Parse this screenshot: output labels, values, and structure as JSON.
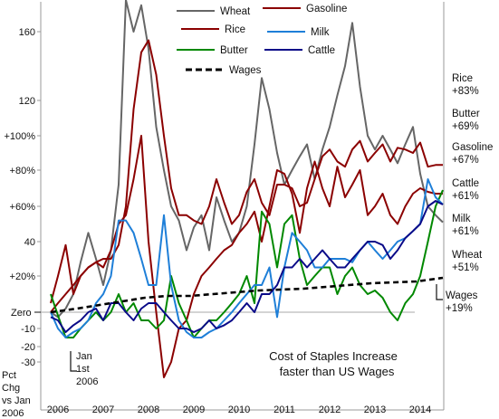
{
  "chart_data": {
    "type": "line",
    "title": "",
    "xlabel": "",
    "ylabel": "",
    "xlim": [
      2005.83,
      2014.6
    ],
    "ylim": [
      -30,
      180
    ],
    "grid": false,
    "legend_position": "top",
    "x_ticks": [
      {
        "value": 2006,
        "label": "2006"
      },
      {
        "value": 2007,
        "label": "2007"
      },
      {
        "value": 2008,
        "label": "2008"
      },
      {
        "value": 2009,
        "label": "2009"
      },
      {
        "value": 2010,
        "label": "2010"
      },
      {
        "value": 2011,
        "label": "2011"
      },
      {
        "value": 2012,
        "label": "2012"
      },
      {
        "value": 2013,
        "label": "2013"
      },
      {
        "value": 2014,
        "label": "2014"
      }
    ],
    "y_ticks": [
      {
        "value": 160,
        "label": "160"
      },
      {
        "value": 120,
        "label": "120"
      },
      {
        "value": 100,
        "label": "+100%"
      },
      {
        "value": 80,
        "label": "+80%"
      },
      {
        "value": 60,
        "label": "+60%"
      },
      {
        "value": 40,
        "label": "40"
      },
      {
        "value": 20,
        "label": "+20%"
      },
      {
        "value": 0,
        "label": "Zero"
      },
      {
        "value": -10,
        "label": "-10"
      },
      {
        "value": -20,
        "label": "-20"
      },
      {
        "value": -30,
        "label": "-30"
      }
    ],
    "x_caption": [
      "Pct",
      "Chg",
      "vs Jan",
      "2006"
    ],
    "jan_marker": {
      "x": 2006.3,
      "label_lines": [
        "Jan",
        "1st",
        "2006"
      ]
    },
    "annotation_lines": [
      "Cost of Staples Increase",
      "faster than US Wages"
    ],
    "series": [
      {
        "name": "Wheat",
        "color": "#666666",
        "dash": false,
        "label_lines": [
          "Wheat",
          "+51%"
        ],
        "x": [
          2005.92,
          2006.08,
          2006.25,
          2006.42,
          2006.58,
          2006.75,
          2006.92,
          2007.08,
          2007.25,
          2007.42,
          2007.58,
          2007.75,
          2007.92,
          2008.08,
          2008.25,
          2008.42,
          2008.58,
          2008.75,
          2008.92,
          2009.08,
          2009.25,
          2009.42,
          2009.58,
          2009.75,
          2009.92,
          2010.08,
          2010.25,
          2010.42,
          2010.58,
          2010.75,
          2010.92,
          2011.08,
          2011.25,
          2011.42,
          2011.58,
          2011.75,
          2011.92,
          2012.08,
          2012.25,
          2012.42,
          2012.58,
          2012.75,
          2012.92,
          2013.08,
          2013.25,
          2013.42,
          2013.58,
          2013.75,
          2013.92,
          2014.08,
          2014.25,
          2014.42,
          2014.58
        ],
        "values": [
          0,
          -3,
          2,
          10,
          28,
          45,
          30,
          15,
          35,
          72,
          178,
          160,
          175,
          150,
          105,
          80,
          60,
          52,
          35,
          48,
          55,
          35,
          65,
          52,
          40,
          45,
          60,
          95,
          133,
          115,
          90,
          72,
          80,
          88,
          95,
          75,
          92,
          105,
          123,
          140,
          165,
          128,
          100,
          92,
          100,
          92,
          84,
          95,
          105,
          78,
          60,
          55,
          51
        ]
      },
      {
        "name": "Gasoline",
        "color": "#8b0000",
        "dash": false,
        "label_lines": [
          "Gasoline",
          "+67%"
        ],
        "x": [
          2005.92,
          2006.08,
          2006.25,
          2006.42,
          2006.58,
          2006.75,
          2006.92,
          2007.08,
          2007.25,
          2007.42,
          2007.58,
          2007.75,
          2007.92,
          2008.08,
          2008.25,
          2008.42,
          2008.58,
          2008.75,
          2008.92,
          2009.08,
          2009.25,
          2009.42,
          2009.58,
          2009.75,
          2009.92,
          2010.08,
          2010.25,
          2010.42,
          2010.58,
          2010.75,
          2010.92,
          2011.08,
          2011.25,
          2011.42,
          2011.58,
          2011.75,
          2011.92,
          2012.08,
          2012.25,
          2012.42,
          2012.58,
          2012.75,
          2012.92,
          2013.08,
          2013.25,
          2013.42,
          2013.58,
          2013.75,
          2013.92,
          2014.08,
          2014.25,
          2014.42,
          2014.58
        ],
        "values": [
          5,
          20,
          38,
          10,
          20,
          25,
          28,
          25,
          35,
          50,
          55,
          75,
          100,
          40,
          0,
          -40,
          -30,
          -10,
          -5,
          10,
          20,
          25,
          30,
          35,
          38,
          45,
          50,
          57,
          40,
          60,
          80,
          78,
          67,
          45,
          70,
          85,
          70,
          60,
          82,
          65,
          72,
          80,
          55,
          60,
          67,
          55,
          50,
          60,
          67,
          70,
          68,
          67,
          67
        ]
      },
      {
        "name": "Rice",
        "color": "#8b0000",
        "dash": false,
        "label_lines": [
          "Rice",
          "+83%"
        ],
        "x": [
          2005.92,
          2006.08,
          2006.25,
          2006.42,
          2006.58,
          2006.75,
          2006.92,
          2007.08,
          2007.25,
          2007.42,
          2007.58,
          2007.75,
          2007.92,
          2008.08,
          2008.25,
          2008.42,
          2008.58,
          2008.75,
          2008.92,
          2009.08,
          2009.25,
          2009.42,
          2009.58,
          2009.75,
          2009.92,
          2010.08,
          2010.25,
          2010.42,
          2010.58,
          2010.75,
          2010.92,
          2011.08,
          2011.25,
          2011.42,
          2011.58,
          2011.75,
          2011.92,
          2012.08,
          2012.25,
          2012.42,
          2012.58,
          2012.75,
          2012.92,
          2013.08,
          2013.25,
          2013.42,
          2013.58,
          2013.75,
          2013.92,
          2014.08,
          2014.25,
          2014.42,
          2014.58
        ],
        "values": [
          0,
          5,
          10,
          15,
          20,
          25,
          28,
          30,
          30,
          38,
          60,
          115,
          148,
          155,
          135,
          100,
          70,
          55,
          55,
          52,
          50,
          60,
          75,
          62,
          50,
          55,
          68,
          75,
          62,
          55,
          72,
          72,
          70,
          60,
          62,
          75,
          88,
          92,
          85,
          82,
          92,
          97,
          85,
          90,
          95,
          85,
          93,
          92,
          90,
          96,
          82,
          83,
          83
        ]
      },
      {
        "name": "Butter",
        "color": "#008800",
        "dash": false,
        "label_lines": [
          "Butter",
          "+69%"
        ],
        "x": [
          2005.92,
          2006.08,
          2006.25,
          2006.42,
          2006.58,
          2006.75,
          2006.92,
          2007.08,
          2007.25,
          2007.42,
          2007.58,
          2007.75,
          2007.92,
          2008.08,
          2008.25,
          2008.42,
          2008.58,
          2008.75,
          2008.92,
          2009.08,
          2009.25,
          2009.42,
          2009.58,
          2009.75,
          2009.92,
          2010.08,
          2010.25,
          2010.42,
          2010.58,
          2010.75,
          2010.92,
          2011.08,
          2011.25,
          2011.42,
          2011.58,
          2011.75,
          2011.92,
          2012.08,
          2012.25,
          2012.42,
          2012.58,
          2012.75,
          2012.92,
          2013.08,
          2013.25,
          2013.42,
          2013.58,
          2013.75,
          2013.92,
          2014.08,
          2014.25,
          2014.42,
          2014.58
        ],
        "values": [
          10,
          -2,
          -15,
          -15,
          -10,
          -5,
          0,
          -5,
          0,
          10,
          0,
          5,
          -5,
          -5,
          -10,
          -5,
          20,
          5,
          -5,
          -15,
          -10,
          -5,
          -5,
          0,
          5,
          10,
          20,
          5,
          57,
          50,
          25,
          50,
          55,
          30,
          15,
          20,
          25,
          25,
          10,
          20,
          25,
          15,
          10,
          12,
          8,
          0,
          -5,
          5,
          10,
          20,
          40,
          60,
          69
        ]
      },
      {
        "name": "Milk",
        "color": "#1e7fd8",
        "dash": false,
        "label_lines": [
          "Milk",
          "+61%"
        ],
        "x": [
          2005.92,
          2006.08,
          2006.25,
          2006.42,
          2006.58,
          2006.75,
          2006.92,
          2007.08,
          2007.25,
          2007.42,
          2007.58,
          2007.75,
          2007.92,
          2008.08,
          2008.25,
          2008.42,
          2008.58,
          2008.75,
          2008.92,
          2009.08,
          2009.25,
          2009.42,
          2009.58,
          2009.75,
          2009.92,
          2010.08,
          2010.25,
          2010.42,
          2010.58,
          2010.75,
          2010.92,
          2011.08,
          2011.25,
          2011.42,
          2011.58,
          2011.75,
          2011.92,
          2012.08,
          2012.25,
          2012.42,
          2012.58,
          2012.75,
          2012.92,
          2013.08,
          2013.25,
          2013.42,
          2013.58,
          2013.75,
          2013.92,
          2014.08,
          2014.25,
          2014.42,
          2014.58
        ],
        "values": [
          0,
          -10,
          -15,
          -12,
          -10,
          -5,
          5,
          10,
          20,
          52,
          52,
          45,
          30,
          15,
          15,
          55,
          15,
          -5,
          -12,
          -15,
          -15,
          -12,
          -10,
          -5,
          0,
          5,
          10,
          15,
          15,
          25,
          -3,
          25,
          45,
          40,
          35,
          25,
          25,
          30,
          30,
          30,
          28,
          35,
          40,
          35,
          30,
          35,
          40,
          42,
          46,
          50,
          75,
          65,
          61
        ]
      },
      {
        "name": "Cattle",
        "color": "#0a0a88",
        "dash": false,
        "label_lines": [
          "Cattle",
          "+61%"
        ],
        "x": [
          2005.92,
          2006.08,
          2006.25,
          2006.42,
          2006.58,
          2006.75,
          2006.92,
          2007.08,
          2007.25,
          2007.42,
          2007.58,
          2007.75,
          2007.92,
          2008.08,
          2008.25,
          2008.42,
          2008.58,
          2008.75,
          2008.92,
          2009.08,
          2009.25,
          2009.42,
          2009.58,
          2009.75,
          2009.92,
          2010.08,
          2010.25,
          2010.42,
          2010.58,
          2010.75,
          2010.92,
          2011.08,
          2011.25,
          2011.42,
          2011.58,
          2011.75,
          2011.92,
          2012.08,
          2012.25,
          2012.42,
          2012.58,
          2012.75,
          2012.92,
          2013.08,
          2013.25,
          2013.42,
          2013.58,
          2013.75,
          2013.92,
          2014.08,
          2014.25,
          2014.42,
          2014.58
        ],
        "values": [
          -3,
          -5,
          -12,
          -8,
          -5,
          0,
          2,
          -5,
          5,
          5,
          0,
          -5,
          2,
          5,
          5,
          0,
          -5,
          -10,
          -10,
          -12,
          -10,
          -5,
          -10,
          -8,
          -5,
          0,
          5,
          0,
          10,
          10,
          15,
          25,
          25,
          30,
          25,
          30,
          35,
          30,
          25,
          25,
          30,
          35,
          40,
          40,
          38,
          30,
          35,
          42,
          46,
          50,
          60,
          63,
          61
        ]
      },
      {
        "name": "Wages",
        "color": "#000000",
        "dash": true,
        "label_lines": [
          "Wages",
          "+19%"
        ],
        "x": [
          2005.92,
          2006.5,
          2007.0,
          2007.5,
          2008.0,
          2008.5,
          2009.0,
          2009.5,
          2010.0,
          2010.5,
          2011.0,
          2011.5,
          2012.0,
          2012.5,
          2013.0,
          2013.5,
          2014.0,
          2014.58
        ],
        "values": [
          0,
          2,
          4,
          6,
          8,
          9,
          9,
          10,
          11,
          12,
          12.5,
          13,
          14,
          15,
          16,
          16.5,
          17,
          19
        ]
      }
    ],
    "legend": [
      {
        "name": "Wheat",
        "color": "#666666",
        "dash": false
      },
      {
        "name": "Gasoline",
        "color": "#8b0000",
        "dash": false
      },
      {
        "name": "Rice",
        "color": "#8b0000",
        "dash": false
      },
      {
        "name": "Milk",
        "color": "#1e7fd8",
        "dash": false
      },
      {
        "name": "Butter",
        "color": "#008800",
        "dash": false
      },
      {
        "name": "Cattle",
        "color": "#0a0a88",
        "dash": false
      },
      {
        "name": "Wages",
        "color": "#000000",
        "dash": true
      }
    ],
    "colors": {
      "axis": "#999999",
      "zero_line": "#aaaaaa",
      "text": "#111111"
    }
  }
}
